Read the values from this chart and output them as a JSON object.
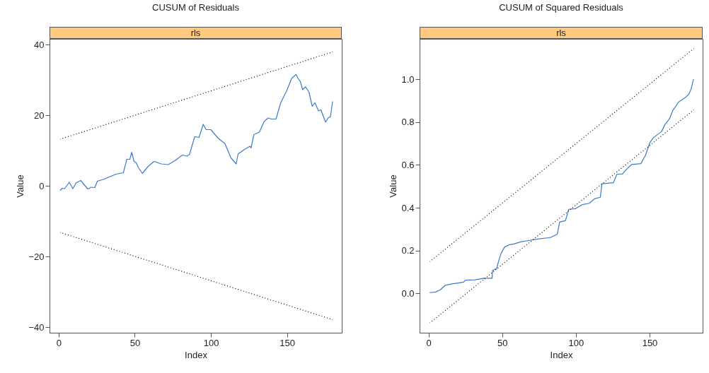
{
  "chart_data": [
    {
      "type": "line",
      "title": "CUSUM of Residuals",
      "subtitle": "rls",
      "xlabel": "Index",
      "ylabel": "Value",
      "xlim": [
        -6,
        186
      ],
      "ylim": [
        -41.6,
        41.6
      ],
      "xticks": [
        0,
        50,
        100,
        150
      ],
      "yticks": [
        -40,
        -20,
        0,
        20,
        40
      ],
      "series": [
        {
          "color": "#3b7cc4",
          "line_style": "solid",
          "x": [
            1,
            2.3,
            3.9,
            7,
            9.3,
            11.4,
            14.5,
            19.1,
            21.5,
            23.8,
            25.4,
            30,
            33.1,
            37.8,
            42.5,
            44.8,
            46.8,
            48,
            49.5,
            51,
            52.3,
            55,
            58.8,
            62.7,
            67.3,
            72,
            76.7,
            81.3,
            84.4,
            86,
            89.4,
            92.2,
            95,
            96.9,
            100,
            104.7,
            109.3,
            113.2,
            116.6,
            117.9,
            121.8,
            125.7,
            126.4,
            128.3,
            131.9,
            135,
            137.6,
            139.7,
            142.8,
            145.9,
            149.8,
            153.2,
            154.4,
            156,
            157.2,
            158.8,
            160.3,
            162.2,
            164.5,
            166.6,
            168.4,
            170.7,
            172.3,
            175.4,
            177,
            178.5,
            180
          ],
          "values": [
            -1.3,
            -0.7,
            -0.8,
            1,
            -0.8,
            0.8,
            1.5,
            -0.9,
            -0.4,
            -0.5,
            1.3,
            1.9,
            2.5,
            3.3,
            3.7,
            7.5,
            7.5,
            9.5,
            6.9,
            6.5,
            5.2,
            3.5,
            5.5,
            6.9,
            6.2,
            6,
            7.2,
            8.7,
            8.4,
            8.9,
            13.9,
            13.7,
            17.4,
            15.9,
            15.9,
            13.5,
            11.9,
            7.9,
            6.2,
            9,
            10.2,
            11.2,
            10.7,
            14.5,
            15.2,
            18.2,
            19.2,
            18.9,
            18.9,
            23.5,
            26.9,
            30.5,
            30.9,
            31.5,
            30.5,
            29.5,
            27.2,
            28,
            26.5,
            22.5,
            23.5,
            21.2,
            21.5,
            18,
            19.2,
            19.5,
            23.9
          ]
        },
        {
          "color": "#000000",
          "line_style": "dotted",
          "x": [
            1,
            180
          ],
          "values": [
            13.2,
            37.9
          ]
        },
        {
          "color": "#000000",
          "line_style": "dotted",
          "x": [
            1,
            180
          ],
          "values": [
            -13.2,
            -37.9
          ]
        }
      ]
    },
    {
      "type": "line",
      "title": "CUSUM of Squared Residuals",
      "subtitle": "rls",
      "xlabel": "Index",
      "ylabel": "Value",
      "xlim": [
        -6,
        186
      ],
      "ylim": [
        -0.183,
        1.188
      ],
      "xticks": [
        0,
        50,
        100,
        150
      ],
      "yticks": [
        {
          "value": 0,
          "label": "0.0"
        },
        0.2,
        0.4,
        0.6,
        0.8,
        {
          "value": 1,
          "label": "1.0"
        }
      ],
      "series": [
        {
          "color": "#3b7cc4",
          "line_style": "solid",
          "x": [
            0.8,
            4.8,
            8.2,
            11.3,
            16,
            23.8,
            25,
            31.5,
            37.7,
            43.2,
            43.5,
            46.3,
            47.8,
            49.4,
            51.7,
            55.1,
            57.9,
            62.6,
            68.8,
            75,
            82.8,
            87.4,
            89,
            92.9,
            95.2,
            99.8,
            104.5,
            109.1,
            113,
            116.6,
            117.7,
            125.5,
            127.8,
            131.7,
            134.8,
            137.9,
            144.1,
            147.2,
            150.3,
            152.6,
            158.1,
            160.4,
            163.5,
            165.8,
            169.7,
            174.4,
            176.7,
            178.2,
            179.8
          ],
          "values": [
            0.004,
            0.007,
            0.018,
            0.038,
            0.045,
            0.053,
            0.062,
            0.064,
            0.071,
            0.071,
            0.108,
            0.117,
            0.156,
            0.189,
            0.217,
            0.228,
            0.231,
            0.241,
            0.248,
            0.255,
            0.261,
            0.277,
            0.333,
            0.34,
            0.393,
            0.396,
            0.415,
            0.421,
            0.443,
            0.449,
            0.512,
            0.517,
            0.556,
            0.558,
            0.583,
            0.602,
            0.606,
            0.644,
            0.705,
            0.727,
            0.755,
            0.788,
            0.815,
            0.854,
            0.893,
            0.915,
            0.931,
            0.954,
            1.0
          ]
        },
        {
          "color": "#000000",
          "line_style": "dotted",
          "x": [
            1,
            180
          ],
          "values": [
            0.149,
            1.143
          ]
        },
        {
          "color": "#000000",
          "line_style": "dotted",
          "x": [
            1,
            180
          ],
          "values": [
            -0.137,
            0.857
          ]
        }
      ]
    }
  ]
}
